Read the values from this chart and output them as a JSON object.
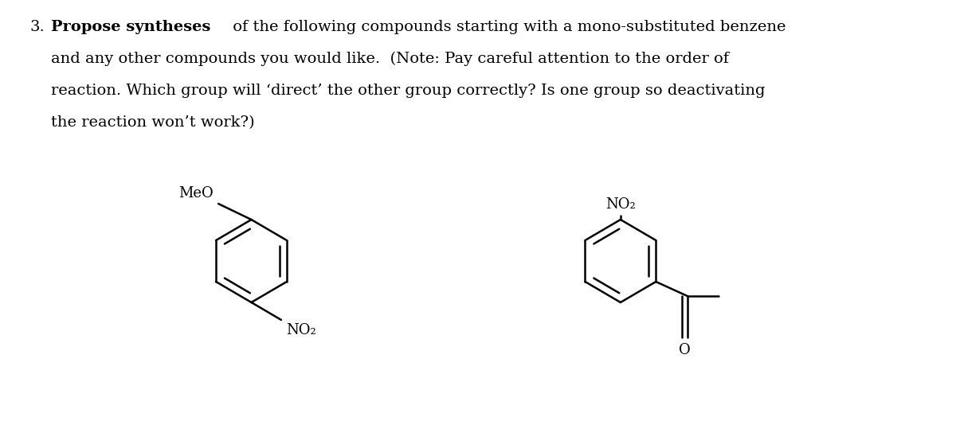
{
  "bg_color": "#ffffff",
  "text_color": "#000000",
  "title_number": "3.",
  "title_bold": "Propose syntheses",
  "line1_rest": " of the following compounds starting with a mono-substituted benzene",
  "line2": "and any other compounds you would like.  (Note: Pay careful attention to the order of",
  "line3": "reaction. Which group will ‘direct’ the other group correctly? Is one group so deactivating",
  "line4": "the reaction won’t work?)",
  "mol1_label_meo": "MeO",
  "mol1_label_no2": "NO₂",
  "mol2_label_no2": "NO₂",
  "mol2_label_o": "O",
  "fontsize_text": 14,
  "fontsize_mol": 13,
  "lw": 1.8
}
